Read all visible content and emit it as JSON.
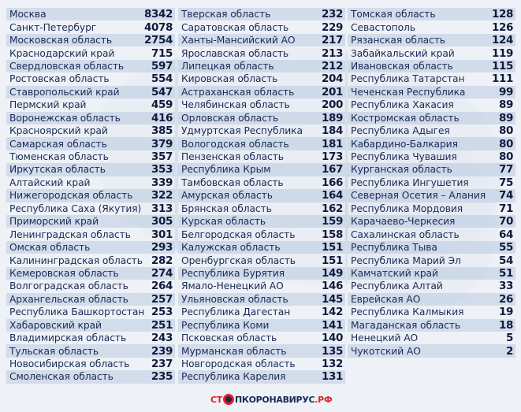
{
  "columns": [
    [
      {
        "name": "Москва",
        "value": "8342"
      },
      {
        "name": "Санкт-Петербург",
        "value": "4078"
      },
      {
        "name": "Московская область",
        "value": "2754"
      },
      {
        "name": "Краснодарский край",
        "value": "715"
      },
      {
        "name": "Свердловская область",
        "value": "597"
      },
      {
        "name": "Ростовская область",
        "value": "554"
      },
      {
        "name": "Ставропольский край",
        "value": "547"
      },
      {
        "name": "Пермский край",
        "value": "459"
      },
      {
        "name": "Воронежская область",
        "value": "416"
      },
      {
        "name": "Красноярский край",
        "value": "385"
      },
      {
        "name": "Самарская область",
        "value": "379"
      },
      {
        "name": "Тюменская область",
        "value": "357"
      },
      {
        "name": "Иркутская область",
        "value": "353"
      },
      {
        "name": "Алтайский край",
        "value": "339"
      },
      {
        "name": "Нижегородская область",
        "value": "322"
      },
      {
        "name": "Республика Саха (Якутия)",
        "value": "313"
      },
      {
        "name": "Приморский край",
        "value": "305"
      },
      {
        "name": "Ленинградская область",
        "value": "301"
      },
      {
        "name": "Омская область",
        "value": "293"
      },
      {
        "name": "Калининградская область",
        "value": "282"
      },
      {
        "name": "Кемеровская область",
        "value": "274"
      },
      {
        "name": "Волгоградская область",
        "value": "264"
      },
      {
        "name": "Архангельская область",
        "value": "257"
      },
      {
        "name": "Республика Башкортостан",
        "value": "253"
      },
      {
        "name": "Хабаровский край",
        "value": "251"
      },
      {
        "name": "Владимирская область",
        "value": "243"
      },
      {
        "name": "Тульская область",
        "value": "239"
      },
      {
        "name": "Новосибирская область",
        "value": "237"
      },
      {
        "name": "Смоленская область",
        "value": "235"
      }
    ],
    [
      {
        "name": "Тверская область",
        "value": "232"
      },
      {
        "name": "Саратовская область",
        "value": "229"
      },
      {
        "name": "Ханты-Мансийский АО",
        "value": "217"
      },
      {
        "name": "Ярославская область",
        "value": "213"
      },
      {
        "name": "Липецкая область",
        "value": "212"
      },
      {
        "name": "Кировская область",
        "value": "204"
      },
      {
        "name": "Астраханская область",
        "value": "201"
      },
      {
        "name": "Челябинская область",
        "value": "200"
      },
      {
        "name": "Орловская область",
        "value": "189"
      },
      {
        "name": "Удмуртская Республика",
        "value": "184"
      },
      {
        "name": "Вологодская область",
        "value": "181"
      },
      {
        "name": "Пензенская область",
        "value": "173"
      },
      {
        "name": "Республика Крым",
        "value": "167"
      },
      {
        "name": "Тамбовская область",
        "value": "166"
      },
      {
        "name": "Амурская область",
        "value": "164"
      },
      {
        "name": "Брянская область",
        "value": "162"
      },
      {
        "name": "Курская область",
        "value": "159"
      },
      {
        "name": "Белгородская область",
        "value": "158"
      },
      {
        "name": "Калужская область",
        "value": "151"
      },
      {
        "name": "Оренбургская область",
        "value": "151"
      },
      {
        "name": "Республика Бурятия",
        "value": "149"
      },
      {
        "name": "Ямало-Ненецкий АО",
        "value": "146"
      },
      {
        "name": "Ульяновская область",
        "value": "145"
      },
      {
        "name": "Республика Дагестан",
        "value": "142"
      },
      {
        "name": "Республика Коми",
        "value": "141"
      },
      {
        "name": "Псковская область",
        "value": "140"
      },
      {
        "name": "Мурманская область",
        "value": "135"
      },
      {
        "name": "Новгородская область",
        "value": "132"
      },
      {
        "name": "Республика Карелия",
        "value": "131"
      }
    ],
    [
      {
        "name": "Томская область",
        "value": "128"
      },
      {
        "name": "Севастополь",
        "value": "126"
      },
      {
        "name": "Рязанская область",
        "value": "124"
      },
      {
        "name": "Забайкальский край",
        "value": "119"
      },
      {
        "name": "Ивановская область",
        "value": "115"
      },
      {
        "name": "Республика Татарстан",
        "value": "111"
      },
      {
        "name": "Чеченская Республика",
        "value": "99"
      },
      {
        "name": "Республика Хакасия",
        "value": "89"
      },
      {
        "name": "Костромская область",
        "value": "89"
      },
      {
        "name": "Республика Адыгея",
        "value": "80"
      },
      {
        "name": "Кабардино-Балкария",
        "value": "80"
      },
      {
        "name": "Республика Чувашия",
        "value": "80"
      },
      {
        "name": "Курганская область",
        "value": "77"
      },
      {
        "name": "Республика Ингушетия",
        "value": "75"
      },
      {
        "name": "Северная Осетия – Алания",
        "value": "74"
      },
      {
        "name": "Республика Мордовия",
        "value": "71"
      },
      {
        "name": "Карачаево-Черкесия",
        "value": "70"
      },
      {
        "name": "Сахалинская область",
        "value": "64"
      },
      {
        "name": "Республика Тыва",
        "value": "55"
      },
      {
        "name": "Республика Марий Эл",
        "value": "54"
      },
      {
        "name": "Камчатский край",
        "value": "51"
      },
      {
        "name": "Республика Алтай",
        "value": "33"
      },
      {
        "name": "Еврейская АО",
        "value": "26"
      },
      {
        "name": "Республика Калмыкия",
        "value": "19"
      },
      {
        "name": "Магаданская область",
        "value": "18"
      },
      {
        "name": "Ненецкий АО",
        "value": "5"
      },
      {
        "name": "Чукотский АО",
        "value": "2"
      }
    ]
  ],
  "logo": {
    "part1": "СТ",
    "part2": "ПКОРОНАВИРУС",
    "part3": ".РФ",
    "icon": "virus-crossed-icon"
  },
  "colors": {
    "text": "#1b2a55",
    "accent": "#e2232a",
    "row_dark": "#cdd8e9",
    "row_light": "#eef1f7"
  }
}
